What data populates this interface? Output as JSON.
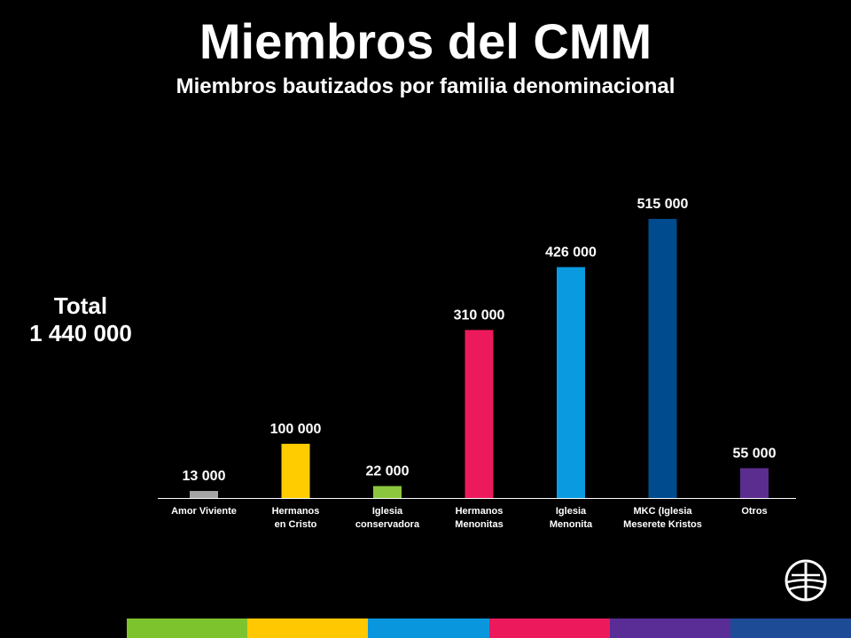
{
  "title": "Miembros del CMM",
  "subtitle": "Miembros bautizados por familia denominacional",
  "total": {
    "label": "Total",
    "value": "1 440 000"
  },
  "logo": {
    "icon": "cmm-globe-cross-icon"
  },
  "stripe_colors": [
    "#7dc32d",
    "#ffc800",
    "#0a96dc",
    "#ec1a5c",
    "#5a2d96",
    "#1e4b96"
  ],
  "chart_data": {
    "type": "bar",
    "title": "Miembros bautizados por familia denominacional",
    "xlabel": "",
    "ylabel": "",
    "ylim": [
      0,
      515000
    ],
    "grid": false,
    "legend": "none",
    "categories": [
      [
        "Amor Viviente"
      ],
      [
        "Hermanos",
        "en Cristo"
      ],
      [
        "Iglesia",
        "conservadora"
      ],
      [
        "Hermanos",
        "Menonitas"
      ],
      [
        "Iglesia",
        "Menonita"
      ],
      [
        "MKC (Iglesia",
        "Meserete Kristos"
      ],
      [
        "Otros"
      ]
    ],
    "values": [
      13000,
      100000,
      22000,
      310000,
      426000,
      515000,
      55000
    ],
    "value_labels": [
      "13 000",
      "100 000",
      "22 000",
      "310 000",
      "426 000",
      "515 000",
      "55 000"
    ],
    "colors": [
      "#a5a5a5",
      "#ffcc00",
      "#8cc63f",
      "#ec1a5c",
      "#0a9ae0",
      "#004b8d",
      "#5b2d8e"
    ]
  }
}
